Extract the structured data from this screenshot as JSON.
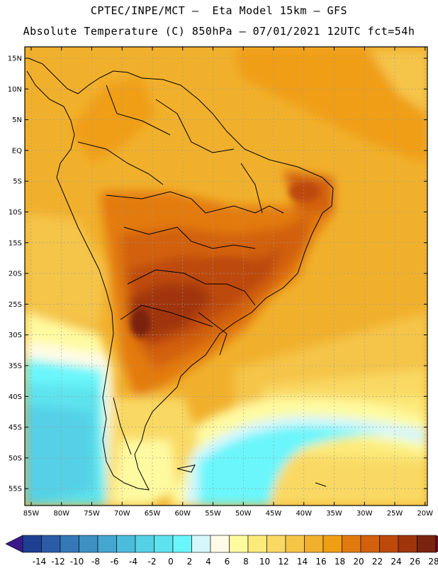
{
  "header": {
    "line1": "CPTEC/INPE/MCT –  Eta Model 15km – GFS",
    "line2": "Absolute Temperature (C) 850hPa – 07/01/2021 12UTC fct=54h"
  },
  "map": {
    "lat_labels": [
      "15N",
      "10N",
      "5N",
      "EQ",
      "5S",
      "10S",
      "15S",
      "20S",
      "25S",
      "30S",
      "35S",
      "40S",
      "45S",
      "50S",
      "55S"
    ],
    "lon_labels": [
      "85W",
      "80W",
      "75W",
      "70W",
      "65W",
      "60W",
      "55W",
      "50W",
      "45W",
      "40W",
      "35W",
      "30W",
      "25W",
      "20W"
    ]
  },
  "legend": {
    "labels": [
      "-14",
      "-12",
      "-10",
      "-8",
      "-6",
      "-4",
      "-2",
      "0",
      "2",
      "4",
      "6",
      "8",
      "10",
      "12",
      "14",
      "16",
      "18",
      "20",
      "22",
      "24",
      "26",
      "28"
    ],
    "colors": [
      "#1f3f93",
      "#2a5ca8",
      "#3478b8",
      "#3d8fc4",
      "#45a6d0",
      "#4cbcdc",
      "#55d0e6",
      "#5de3ee",
      "#6af6fb",
      "#d4f7fb",
      "#fffbe6",
      "#fefaa0",
      "#fcea7a",
      "#f9d964",
      "#f5c548",
      "#f1b02c",
      "#f09e14",
      "#e37a10",
      "#d2600d",
      "#bd4a0a",
      "#a0350c",
      "#7a2410"
    ]
  }
}
